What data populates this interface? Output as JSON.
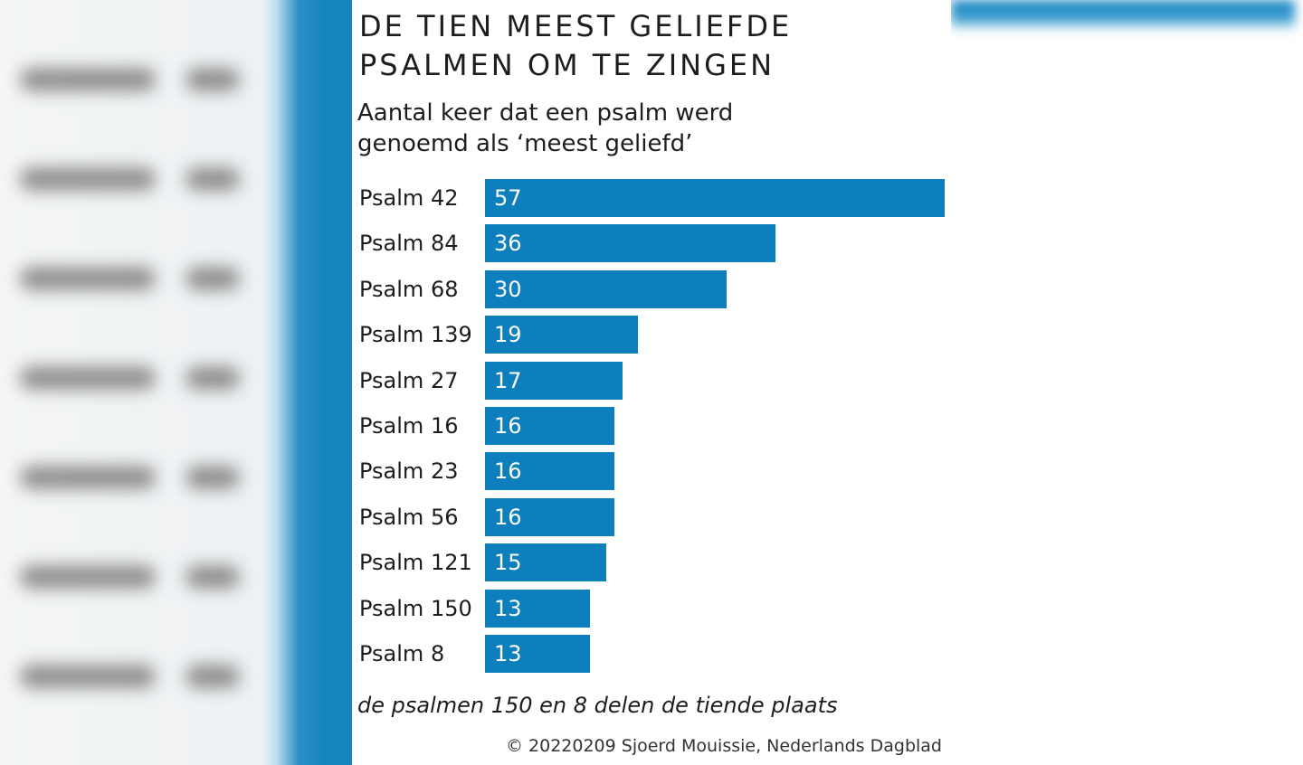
{
  "chart_data": {
    "type": "bar",
    "orientation": "horizontal",
    "title": "DE TIEN MEEST GELIEFDE PSALMEN OM TE ZINGEN",
    "subtitle": "Aantal keer dat een psalm werd genoemd als ‘meest geliefd’",
    "categories": [
      "Psalm 42",
      "Psalm 84",
      "Psalm 68",
      "Psalm 139",
      "Psalm 27",
      "Psalm 16",
      "Psalm 23",
      "Psalm 56",
      "Psalm 121",
      "Psalm 150",
      "Psalm 8"
    ],
    "values": [
      57,
      36,
      30,
      19,
      17,
      16,
      16,
      16,
      15,
      13,
      13
    ],
    "xlim": [
      0,
      57
    ],
    "grid": false,
    "legend": "none",
    "bar_color": "#0d7fbd",
    "note": "de psalmen 150 en 8 delen de tiende plaats",
    "credit": "© 20220209 Sjoerd Mouissie, Nederlands Dagblad"
  }
}
